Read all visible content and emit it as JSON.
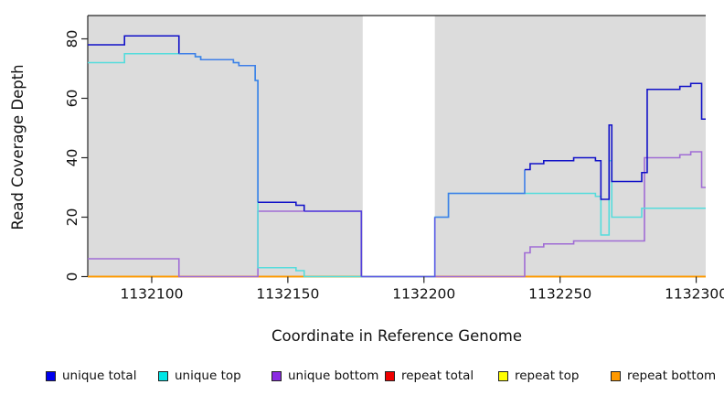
{
  "chart_data": {
    "type": "line",
    "subtype": "step-coverage",
    "title": "",
    "xlabel": "Coordinate in Reference Genome",
    "ylabel": "Read Coverage Depth",
    "x_range": [
      1132076.5,
      1132303.5
    ],
    "y_range": [
      0,
      88
    ],
    "grid": false,
    "legend_position": "bottom",
    "plot_bg": "#DCDCDC",
    "axis_color": "#262626",
    "no_data_region": {
      "x_start": 1132177.5,
      "x_end": 1132204,
      "color": "#FFFFFF"
    },
    "overlap_colors": {
      "with_top": "#3F7FE8",
      "with_bottom": "#5340DC",
      "zero": "#5B5BE6"
    },
    "x_ticks": [
      {
        "value": 1132100,
        "label": "1132100"
      },
      {
        "value": 1132150,
        "label": "1132150"
      },
      {
        "value": 1132200,
        "label": "1132200"
      },
      {
        "value": 1132250,
        "label": "1132250"
      },
      {
        "value": 1132300,
        "label": "1132300"
      }
    ],
    "y_ticks": [
      {
        "value": 0,
        "label": "0"
      },
      {
        "value": 20,
        "label": "20"
      },
      {
        "value": 40,
        "label": "40"
      },
      {
        "value": 60,
        "label": "60"
      },
      {
        "value": 80,
        "label": "80"
      }
    ],
    "series": [
      {
        "name": "repeat total",
        "color": "#CC2222",
        "width": 1.6,
        "points": [
          [
            1132076.5,
            0
          ]
        ]
      },
      {
        "name": "repeat top",
        "color": "#EEEE22",
        "width": 1.6,
        "points": [
          [
            1132076.5,
            0
          ]
        ]
      },
      {
        "name": "repeat bottom",
        "color": "#FF9900",
        "width": 1.8,
        "points": [
          [
            1132076.5,
            0
          ]
        ]
      },
      {
        "name": "unique bottom",
        "color": "#A06CD5",
        "width": 1.6,
        "points": [
          [
            1132076.5,
            6
          ],
          [
            1132110,
            0
          ],
          [
            1132139,
            22
          ],
          [
            1132177,
            0
          ],
          [
            1132237,
            8
          ],
          [
            1132239,
            10
          ],
          [
            1132244,
            11
          ],
          [
            1132255,
            12
          ],
          [
            1132281,
            40
          ],
          [
            1132294,
            41
          ],
          [
            1132298,
            42
          ],
          [
            1132302,
            30
          ]
        ]
      },
      {
        "name": "unique top",
        "color": "#55DCDC",
        "width": 1.6,
        "points": [
          [
            1132076.5,
            72
          ],
          [
            1132090,
            75
          ],
          [
            1132116,
            74
          ],
          [
            1132118,
            73
          ],
          [
            1132130,
            72
          ],
          [
            1132132,
            71
          ],
          [
            1132138,
            66
          ],
          [
            1132139,
            3
          ],
          [
            1132153,
            2
          ],
          [
            1132156,
            0
          ],
          [
            1132204,
            20
          ],
          [
            1132209,
            28
          ],
          [
            1132263,
            27
          ],
          [
            1132265,
            14
          ],
          [
            1132268,
            39
          ],
          [
            1132269,
            20
          ],
          [
            1132280,
            23
          ]
        ]
      },
      {
        "name": "unique total",
        "color": "#1111C8",
        "width": 1.6,
        "points": [
          [
            1132076.5,
            78
          ],
          [
            1132090,
            81
          ],
          [
            1132110,
            75
          ],
          [
            1132116,
            74
          ],
          [
            1132118,
            73
          ],
          [
            1132130,
            72
          ],
          [
            1132132,
            71
          ],
          [
            1132138,
            66
          ],
          [
            1132139,
            25
          ],
          [
            1132153,
            24
          ],
          [
            1132156,
            22
          ],
          [
            1132177,
            0
          ],
          [
            1132204,
            20
          ],
          [
            1132209,
            28
          ],
          [
            1132237,
            36
          ],
          [
            1132239,
            38
          ],
          [
            1132244,
            39
          ],
          [
            1132255,
            40
          ],
          [
            1132263,
            39
          ],
          [
            1132265,
            26
          ],
          [
            1132268,
            51
          ],
          [
            1132269,
            32
          ],
          [
            1132280,
            35
          ],
          [
            1132282,
            63
          ],
          [
            1132294,
            64
          ],
          [
            1132298,
            65
          ],
          [
            1132302,
            53
          ]
        ]
      }
    ],
    "legend": [
      {
        "label": "unique total",
        "color": "#0000EE"
      },
      {
        "label": "unique top",
        "color": "#00E5E5"
      },
      {
        "label": "unique bottom",
        "color": "#8B2BE2"
      },
      {
        "label": "repeat total",
        "color": "#EE0000"
      },
      {
        "label": "repeat top",
        "color": "#FFFF00"
      },
      {
        "label": "repeat bottom",
        "color": "#FF9900"
      }
    ]
  }
}
